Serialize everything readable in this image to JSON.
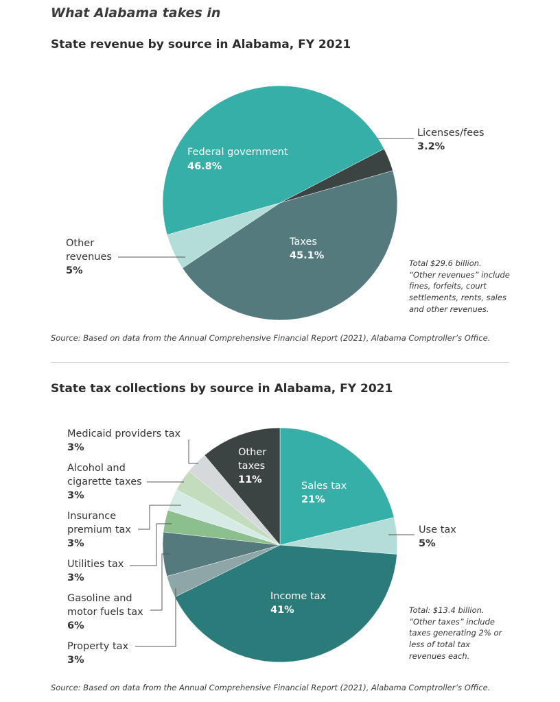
{
  "header": {
    "title": "What Alabama takes in"
  },
  "revenue": {
    "title": "State revenue by source in Alabama, FY 2021",
    "note": [
      "Total $29.6 billion.",
      "“Other revenues” include",
      "fines, forfeits, court",
      "settlements, rents, sales",
      "and other revenues."
    ],
    "source": "Source: Based on data from the Annual Comprehensive Financial Report (2021), Alabama Comptroller’s Office."
  },
  "tax": {
    "title": "State tax collections by source in Alabama, FY 2021",
    "note": [
      "Total: $13.4 billion.",
      "“Other taxes” include",
      "taxes generating 2% or",
      "less of total tax",
      "revenues each."
    ],
    "source": "Source: Based on data from the Annual Comprehensive Financial Report (2021), Alabama Comptroller’s Office."
  },
  "chart_data": [
    {
      "type": "pie",
      "title": "State revenue by source in Alabama, FY 2021",
      "slices": [
        {
          "name": "Federal government",
          "value": 46.8,
          "pct_label": "46.8%",
          "color": "#36afa8"
        },
        {
          "name": "Licenses/fees",
          "value": 3.2,
          "pct_label": "3.2%",
          "color": "#3b4442"
        },
        {
          "name": "Taxes",
          "value": 45.1,
          "pct_label": "45.1%",
          "color": "#557a7e"
        },
        {
          "name": "Other revenues",
          "value": 5,
          "pct_label": "5%",
          "color": "#b5ddd8"
        }
      ]
    },
    {
      "type": "pie",
      "title": "State tax collections by source in Alabama, FY 2021",
      "slices": [
        {
          "name": "Sales tax",
          "value": 21,
          "pct_label": "21%",
          "color": "#36afa8"
        },
        {
          "name": "Use tax",
          "value": 5,
          "pct_label": "5%",
          "color": "#b5ddd8"
        },
        {
          "name": "Income tax",
          "value": 41,
          "pct_label": "41%",
          "color": "#2a7b79"
        },
        {
          "name": "Property tax",
          "value": 3,
          "pct_label": "3%",
          "color": "#8fa6a6"
        },
        {
          "name": "Gasoline and motor fuels tax",
          "value": 6,
          "pct_label": "6%",
          "color": "#557a7e"
        },
        {
          "name": "Utilities tax",
          "value": 3,
          "pct_label": "3%",
          "color": "#8bbf8d"
        },
        {
          "name": "Insurance premium tax",
          "value": 3,
          "pct_label": "3%",
          "color": "#d6ebe6"
        },
        {
          "name": "Alcohol and cigarette taxes",
          "value": 3,
          "pct_label": "3%",
          "color": "#c2dcbd"
        },
        {
          "name": "Medicaid providers tax",
          "value": 3,
          "pct_label": "3%",
          "color": "#d5d9db"
        },
        {
          "name": "Other taxes",
          "value": 11,
          "pct_label": "11%",
          "color": "#3b4442"
        }
      ]
    }
  ]
}
